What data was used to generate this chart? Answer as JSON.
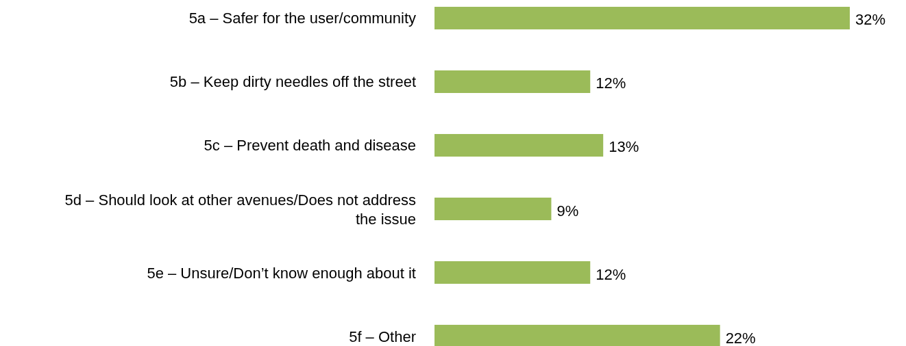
{
  "chart_data": {
    "type": "bar",
    "orientation": "horizontal",
    "categories": [
      "5a – Safer for the user/community",
      "5b – Keep dirty needles off the street",
      "5c – Prevent death and disease",
      "5d – Should look at other avenues/Does not address the issue",
      "5e – Unsure/Don’t know enough about it",
      "5f – Other"
    ],
    "values": [
      32,
      12,
      13,
      9,
      12,
      22
    ],
    "value_labels": [
      "32%",
      "12%",
      "13%",
      "9%",
      "12%",
      "22%"
    ],
    "color": "#9bbb59"
  }
}
